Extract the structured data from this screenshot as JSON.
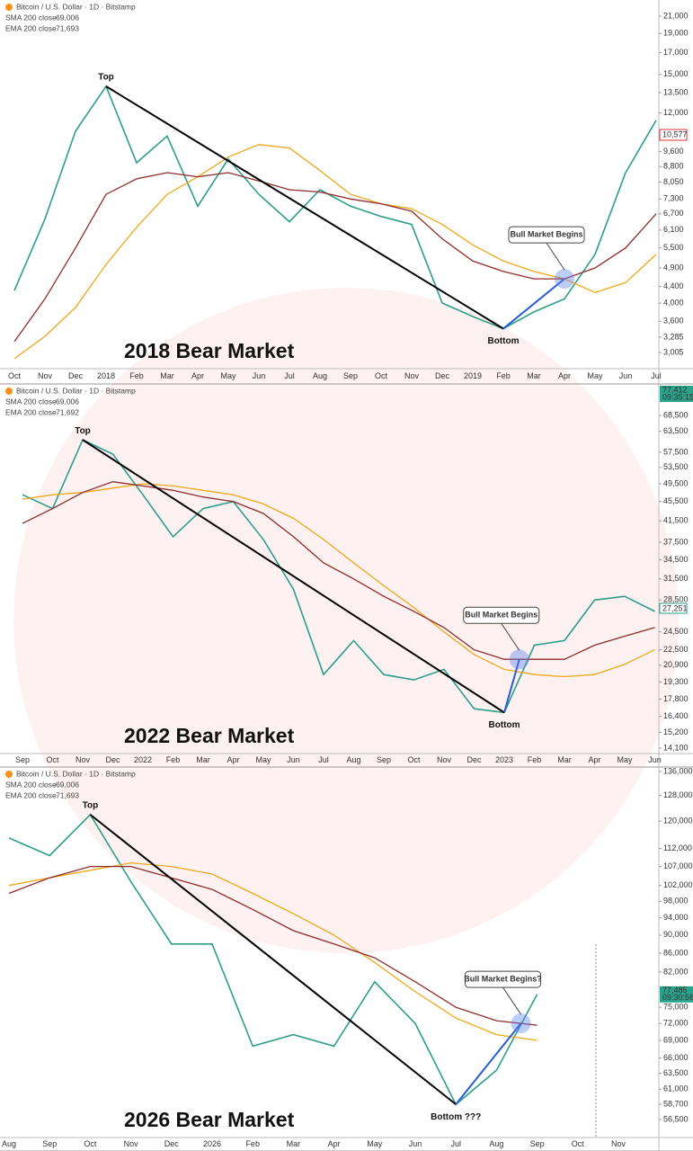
{
  "chart_data": [
    {
      "type": "line",
      "title": "2018 Bear Market",
      "log_scale": true,
      "annotations": {
        "top": "Top",
        "bottom": "Bottom",
        "signal": "Bull Market Begins"
      },
      "price_label": "10,577",
      "categories": [
        "Oct",
        "Nov",
        "Dec",
        "2018",
        "Feb",
        "Mar",
        "Apr",
        "May",
        "Jun",
        "Jul",
        "Aug",
        "Sep",
        "Oct",
        "Nov",
        "Dec",
        "2019",
        "Feb",
        "Mar",
        "Apr",
        "May",
        "Jun",
        "Jul"
      ],
      "series": [
        {
          "name": "Bitcoin / U.S. Dollar · 1D · Bitstamp",
          "color": "#2e9e88",
          "values": [
            4300,
            6500,
            10800,
            14000,
            9000,
            10500,
            7000,
            9200,
            7500,
            6400,
            7700,
            7000,
            6600,
            6300,
            4000,
            3700,
            3450,
            3800,
            4100,
            5300,
            8500,
            11500
          ]
        },
        {
          "name": "SMA 200 close",
          "legend_value": "69,006",
          "color": "#f0a81c",
          "values": [
            2900,
            3300,
            3900,
            5000,
            6200,
            7500,
            8300,
            9300,
            10000,
            9800,
            8600,
            7500,
            7100,
            6900,
            6300,
            5600,
            5100,
            4800,
            4600,
            4250,
            4500,
            5300
          ]
        },
        {
          "name": "EMA 200 close",
          "legend_value": "71,693",
          "color": "#8e2b2b",
          "values": [
            3200,
            4100,
            5500,
            7500,
            8200,
            8500,
            8300,
            8500,
            8100,
            7700,
            7600,
            7300,
            7100,
            6800,
            5800,
            5100,
            4800,
            4600,
            4600,
            4900,
            5500,
            6700
          ]
        }
      ],
      "ylim": [
        2737,
        23060
      ],
      "yticks": [
        {
          "value": 21000,
          "label": "21,000"
        },
        {
          "value": 19000,
          "label": "19,000"
        },
        {
          "value": 17000,
          "label": "17,000"
        },
        {
          "value": 15000,
          "label": "15,000"
        },
        {
          "value": 13500,
          "label": "13,500"
        },
        {
          "value": 12000,
          "label": "12,000"
        },
        {
          "value": 9600,
          "label": "9,600"
        },
        {
          "value": 8800,
          "label": "8,800"
        },
        {
          "value": 8050,
          "label": "8,050"
        },
        {
          "value": 7300,
          "label": "7,300"
        },
        {
          "value": 6700,
          "label": "6,700"
        },
        {
          "value": 6100,
          "label": "6,100"
        },
        {
          "value": 5500,
          "label": "5,500"
        },
        {
          "value": 4900,
          "label": "4,900"
        },
        {
          "value": 4400,
          "label": "4,400"
        },
        {
          "value": 4000,
          "label": "4,000"
        },
        {
          "value": 3600,
          "label": "3,600"
        },
        {
          "value": 3285,
          "label": "3,285"
        },
        {
          "value": 3005,
          "label": "3,005"
        }
      ]
    },
    {
      "type": "line",
      "title": "2022 Bear Market",
      "log_scale": true,
      "annotations": {
        "top": "Top",
        "bottom": "Bottom",
        "signal": "Bull Market Begins"
      },
      "price_label": "77,412",
      "time_label": "09:35:15",
      "last_label": "27,251",
      "categories": [
        "Sep",
        "Oct",
        "Nov",
        "Dec",
        "2022",
        "Feb",
        "Mar",
        "Apr",
        "May",
        "Jun",
        "Jul",
        "Aug",
        "Sep",
        "Oct",
        "Nov",
        "Dec",
        "2023",
        "Feb",
        "Mar",
        "Apr",
        "May",
        "Jun"
      ],
      "series": [
        {
          "name": "Bitcoin / U.S. Dollar · 1D · Bitstamp",
          "color": "#2e9e88",
          "values": [
            47000,
            44000,
            61000,
            57000,
            47000,
            38500,
            44000,
            45500,
            38000,
            30000,
            20000,
            23500,
            20000,
            19500,
            20500,
            17000,
            16700,
            23000,
            23500,
            28500,
            29000,
            27000
          ]
        },
        {
          "name": "SMA 200 close",
          "legend_value": "69,006",
          "color": "#f0a81c",
          "values": [
            46000,
            47000,
            47500,
            48500,
            49500,
            49000,
            48000,
            47000,
            45000,
            42000,
            38000,
            34000,
            30500,
            27500,
            24500,
            22000,
            20500,
            20000,
            19800,
            20000,
            21000,
            22500
          ]
        },
        {
          "name": "EMA 200 close",
          "legend_value": "71,692",
          "color": "#8e2b2b",
          "values": [
            41000,
            44000,
            47500,
            50000,
            49000,
            48000,
            46500,
            45500,
            43000,
            38500,
            34000,
            31500,
            29000,
            27000,
            25000,
            22500,
            21500,
            21500,
            21500,
            23000,
            24000,
            25000
          ]
        }
      ],
      "ylim": [
        13743,
        79550
      ],
      "yticks": [
        {
          "value": 68500,
          "label": "68,500"
        },
        {
          "value": 63500,
          "label": "63,500"
        },
        {
          "value": 57500,
          "label": "57,500"
        },
        {
          "value": 53500,
          "label": "53,500"
        },
        {
          "value": 49500,
          "label": "49,500"
        },
        {
          "value": 45500,
          "label": "45,500"
        },
        {
          "value": 41500,
          "label": "41,500"
        },
        {
          "value": 37500,
          "label": "37,500"
        },
        {
          "value": 34500,
          "label": "34,500"
        },
        {
          "value": 31500,
          "label": "31,500"
        },
        {
          "value": 28500,
          "label": "28,500"
        },
        {
          "value": 24500,
          "label": "24,500"
        },
        {
          "value": 22500,
          "label": "22,500"
        },
        {
          "value": 20900,
          "label": "20,900"
        },
        {
          "value": 19300,
          "label": "19,300"
        },
        {
          "value": 17800,
          "label": "17,800"
        },
        {
          "value": 16400,
          "label": "16,400"
        },
        {
          "value": 15200,
          "label": "15,200"
        },
        {
          "value": 14100,
          "label": "14,100"
        }
      ]
    },
    {
      "type": "line",
      "title": "2026 Bear Market",
      "log_scale": true,
      "annotations": {
        "top": "Top",
        "bottom": "Bottom ???",
        "signal": "Bull Market Begins?"
      },
      "price_label": "77,485",
      "time_label": "09:30:56",
      "categories": [
        "Aug",
        "Sep",
        "Oct",
        "Nov",
        "Dec",
        "2026",
        "Feb",
        "Mar",
        "Apr",
        "May",
        "Jun",
        "Jul",
        "Aug",
        "Sep",
        "Oct",
        "Nov"
      ],
      "series": [
        {
          "name": "Bitcoin / U.S. Dollar · 1D · Bitstamp",
          "color": "#2e9e88",
          "values": [
            115000,
            110000,
            122000,
            103000,
            88000,
            88000,
            68000,
            70000,
            68000,
            80000,
            72000,
            58700,
            64000,
            77485,
            null,
            null
          ]
        },
        {
          "name": "SMA 200 close",
          "legend_value": "69,006",
          "color": "#f0a81c",
          "values": [
            102000,
            104000,
            106000,
            108000,
            107000,
            105000,
            100000,
            95000,
            90000,
            84000,
            78000,
            73000,
            70000,
            69006,
            null,
            null
          ]
        },
        {
          "name": "EMA 200 close",
          "legend_value": "71,693",
          "color": "#8e2b2b",
          "values": [
            100000,
            104000,
            107000,
            107000,
            104000,
            101000,
            96000,
            91000,
            88000,
            85000,
            80000,
            75000,
            72500,
            71693,
            null,
            null
          ]
        }
      ],
      "ylim": [
        53990,
        137550
      ],
      "yticks": [
        {
          "value": 136000,
          "label": "136,000"
        },
        {
          "value": 128000,
          "label": "128,000"
        },
        {
          "value": 120000,
          "label": "120,000"
        },
        {
          "value": 112000,
          "label": "112,000"
        },
        {
          "value": 107000,
          "label": "107,000"
        },
        {
          "value": 102000,
          "label": "102,000"
        },
        {
          "value": 98000,
          "label": "98,000"
        },
        {
          "value": 94000,
          "label": "94,000"
        },
        {
          "value": 90000,
          "label": "90,000"
        },
        {
          "value": 86000,
          "label": "86,000"
        },
        {
          "value": 82000,
          "label": "82,000"
        },
        {
          "value": 75000,
          "label": "75,000"
        },
        {
          "value": 72000,
          "label": "72,000"
        },
        {
          "value": 69000,
          "label": "69,000"
        },
        {
          "value": 66000,
          "label": "66,000"
        },
        {
          "value": 63500,
          "label": "63,500"
        },
        {
          "value": 61000,
          "label": "61,000"
        },
        {
          "value": 58700,
          "label": "58,700"
        },
        {
          "value": 56500,
          "label": "56,500"
        }
      ]
    }
  ]
}
